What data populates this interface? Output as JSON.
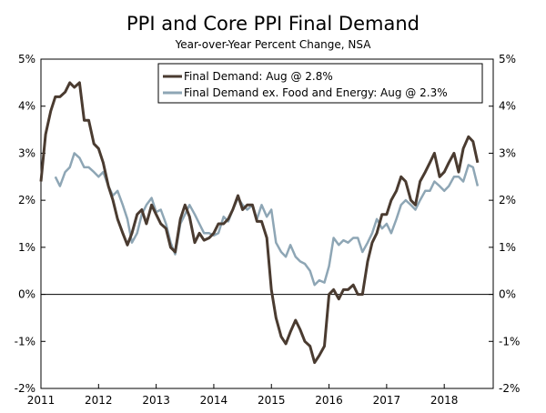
{
  "chart_data": {
    "type": "line",
    "title": "PPI and Core PPI Final Demand",
    "subtitle": "Year-over-Year Percent Change, NSA",
    "xlabel": "",
    "ylabel": "",
    "xlim": [
      2011.0,
      2018.85
    ],
    "ylim": [
      -2,
      5
    ],
    "grid": false,
    "legend_position": "top-center",
    "y_ticks": [
      "5%",
      "4%",
      "3%",
      "2%",
      "1%",
      "0%",
      "-1%",
      "-2%"
    ],
    "y_tick_values": [
      5,
      4,
      3,
      2,
      1,
      0,
      -1,
      -2
    ],
    "x_ticks": [
      "2011",
      "2012",
      "2013",
      "2014",
      "2015",
      "2016",
      "2017",
      "2018"
    ],
    "x_tick_values": [
      2011,
      2012,
      2013,
      2014,
      2015,
      2016,
      2017,
      2018
    ],
    "series": [
      {
        "name": "Final Demand: Aug @ 2.8%",
        "color": "#4a3b30",
        "points": [
          [
            2011.0,
            2.4
          ],
          [
            2011.08,
            3.4
          ],
          [
            2011.17,
            3.9
          ],
          [
            2011.25,
            4.2
          ],
          [
            2011.33,
            4.2
          ],
          [
            2011.42,
            4.3
          ],
          [
            2011.5,
            4.5
          ],
          [
            2011.58,
            4.4
          ],
          [
            2011.67,
            4.5
          ],
          [
            2011.75,
            3.7
          ],
          [
            2011.83,
            3.7
          ],
          [
            2011.92,
            3.2
          ],
          [
            2012.0,
            3.1
          ],
          [
            2012.08,
            2.8
          ],
          [
            2012.17,
            2.3
          ],
          [
            2012.25,
            2.0
          ],
          [
            2012.33,
            1.6
          ],
          [
            2012.42,
            1.3
          ],
          [
            2012.5,
            1.05
          ],
          [
            2012.58,
            1.3
          ],
          [
            2012.67,
            1.7
          ],
          [
            2012.75,
            1.8
          ],
          [
            2012.83,
            1.5
          ],
          [
            2012.92,
            1.9
          ],
          [
            2013.0,
            1.7
          ],
          [
            2013.08,
            1.5
          ],
          [
            2013.17,
            1.4
          ],
          [
            2013.25,
            1.0
          ],
          [
            2013.33,
            0.9
          ],
          [
            2013.42,
            1.6
          ],
          [
            2013.5,
            1.9
          ],
          [
            2013.58,
            1.65
          ],
          [
            2013.67,
            1.1
          ],
          [
            2013.75,
            1.3
          ],
          [
            2013.83,
            1.15
          ],
          [
            2013.92,
            1.2
          ],
          [
            2014.0,
            1.3
          ],
          [
            2014.08,
            1.5
          ],
          [
            2014.17,
            1.5
          ],
          [
            2014.25,
            1.6
          ],
          [
            2014.33,
            1.8
          ],
          [
            2014.42,
            2.1
          ],
          [
            2014.5,
            1.8
          ],
          [
            2014.58,
            1.9
          ],
          [
            2014.67,
            1.9
          ],
          [
            2014.75,
            1.55
          ],
          [
            2014.83,
            1.55
          ],
          [
            2014.92,
            1.2
          ],
          [
            2015.0,
            0.1
          ],
          [
            2015.08,
            -0.5
          ],
          [
            2015.17,
            -0.9
          ],
          [
            2015.25,
            -1.05
          ],
          [
            2015.33,
            -0.8
          ],
          [
            2015.42,
            -0.55
          ],
          [
            2015.5,
            -0.75
          ],
          [
            2015.58,
            -1.0
          ],
          [
            2015.67,
            -1.1
          ],
          [
            2015.75,
            -1.45
          ],
          [
            2015.83,
            -1.3
          ],
          [
            2015.92,
            -1.1
          ],
          [
            2016.0,
            0.0
          ],
          [
            2016.08,
            0.1
          ],
          [
            2016.17,
            -0.1
          ],
          [
            2016.25,
            0.1
          ],
          [
            2016.33,
            0.1
          ],
          [
            2016.42,
            0.2
          ],
          [
            2016.5,
            0.0
          ],
          [
            2016.58,
            0.0
          ],
          [
            2016.67,
            0.7
          ],
          [
            2016.75,
            1.1
          ],
          [
            2016.83,
            1.3
          ],
          [
            2016.92,
            1.7
          ],
          [
            2017.0,
            1.7
          ],
          [
            2017.08,
            2.0
          ],
          [
            2017.17,
            2.2
          ],
          [
            2017.25,
            2.5
          ],
          [
            2017.33,
            2.4
          ],
          [
            2017.42,
            2.0
          ],
          [
            2017.5,
            1.9
          ],
          [
            2017.58,
            2.4
          ],
          [
            2017.67,
            2.6
          ],
          [
            2017.75,
            2.8
          ],
          [
            2017.83,
            3.0
          ],
          [
            2017.92,
            2.5
          ],
          [
            2018.0,
            2.6
          ],
          [
            2018.08,
            2.8
          ],
          [
            2018.17,
            3.0
          ],
          [
            2018.25,
            2.6
          ],
          [
            2018.33,
            3.1
          ],
          [
            2018.42,
            3.35
          ],
          [
            2018.5,
            3.25
          ],
          [
            2018.58,
            2.8
          ]
        ]
      },
      {
        "name": "Final Demand ex. Food and Energy: Aug @ 2.3%",
        "color": "#8ea6b5",
        "points": [
          [
            2011.25,
            2.5
          ],
          [
            2011.33,
            2.3
          ],
          [
            2011.42,
            2.6
          ],
          [
            2011.5,
            2.7
          ],
          [
            2011.58,
            3.0
          ],
          [
            2011.67,
            2.9
          ],
          [
            2011.75,
            2.7
          ],
          [
            2011.83,
            2.7
          ],
          [
            2011.92,
            2.6
          ],
          [
            2012.0,
            2.5
          ],
          [
            2012.08,
            2.6
          ],
          [
            2012.17,
            2.3
          ],
          [
            2012.25,
            2.1
          ],
          [
            2012.33,
            2.2
          ],
          [
            2012.42,
            1.9
          ],
          [
            2012.5,
            1.6
          ],
          [
            2012.58,
            1.1
          ],
          [
            2012.67,
            1.3
          ],
          [
            2012.75,
            1.7
          ],
          [
            2012.83,
            1.9
          ],
          [
            2012.92,
            2.05
          ],
          [
            2013.0,
            1.75
          ],
          [
            2013.08,
            1.8
          ],
          [
            2013.17,
            1.5
          ],
          [
            2013.25,
            1.1
          ],
          [
            2013.33,
            0.85
          ],
          [
            2013.42,
            1.5
          ],
          [
            2013.5,
            1.7
          ],
          [
            2013.58,
            1.9
          ],
          [
            2013.67,
            1.7
          ],
          [
            2013.75,
            1.5
          ],
          [
            2013.83,
            1.3
          ],
          [
            2013.92,
            1.3
          ],
          [
            2014.0,
            1.25
          ],
          [
            2014.08,
            1.3
          ],
          [
            2014.17,
            1.65
          ],
          [
            2014.25,
            1.55
          ],
          [
            2014.33,
            1.8
          ],
          [
            2014.42,
            2.05
          ],
          [
            2014.5,
            1.9
          ],
          [
            2014.58,
            1.8
          ],
          [
            2014.67,
            1.9
          ],
          [
            2014.75,
            1.6
          ],
          [
            2014.83,
            1.9
          ],
          [
            2014.92,
            1.65
          ],
          [
            2015.0,
            1.8
          ],
          [
            2015.08,
            1.1
          ],
          [
            2015.17,
            0.9
          ],
          [
            2015.25,
            0.8
          ],
          [
            2015.33,
            1.05
          ],
          [
            2015.42,
            0.8
          ],
          [
            2015.5,
            0.7
          ],
          [
            2015.58,
            0.65
          ],
          [
            2015.67,
            0.5
          ],
          [
            2015.75,
            0.2
          ],
          [
            2015.83,
            0.3
          ],
          [
            2015.92,
            0.25
          ],
          [
            2016.0,
            0.6
          ],
          [
            2016.08,
            1.2
          ],
          [
            2016.17,
            1.05
          ],
          [
            2016.25,
            1.15
          ],
          [
            2016.33,
            1.1
          ],
          [
            2016.42,
            1.2
          ],
          [
            2016.5,
            1.2
          ],
          [
            2016.58,
            0.9
          ],
          [
            2016.67,
            1.1
          ],
          [
            2016.75,
            1.3
          ],
          [
            2016.83,
            1.6
          ],
          [
            2016.92,
            1.4
          ],
          [
            2017.0,
            1.5
          ],
          [
            2017.08,
            1.3
          ],
          [
            2017.17,
            1.6
          ],
          [
            2017.25,
            1.9
          ],
          [
            2017.33,
            2.0
          ],
          [
            2017.42,
            1.9
          ],
          [
            2017.5,
            1.8
          ],
          [
            2017.58,
            2.0
          ],
          [
            2017.67,
            2.2
          ],
          [
            2017.75,
            2.2
          ],
          [
            2017.83,
            2.4
          ],
          [
            2017.92,
            2.3
          ],
          [
            2018.0,
            2.2
          ],
          [
            2018.08,
            2.3
          ],
          [
            2018.17,
            2.5
          ],
          [
            2018.25,
            2.5
          ],
          [
            2018.33,
            2.4
          ],
          [
            2018.42,
            2.75
          ],
          [
            2018.5,
            2.7
          ],
          [
            2018.58,
            2.3
          ]
        ]
      }
    ]
  }
}
